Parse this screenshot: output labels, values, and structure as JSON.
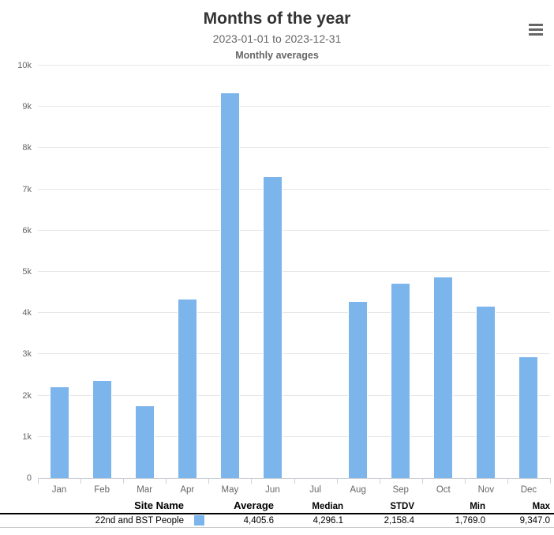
{
  "header": {
    "title": "Months of the year",
    "subtitle": "2023-01-01 to 2023-12-31",
    "subtitle2": "Monthly averages"
  },
  "colors": {
    "bar": "#7cb5ec",
    "grid": "#e6e6e6",
    "axis": "#ccd0d6",
    "axis_label": "#666666",
    "title": "#333333",
    "subtitle": "#666666"
  },
  "chart_data": {
    "type": "bar",
    "title": "Months of the year",
    "subtitle": "2023-01-01 to 2023-12-31",
    "subtitle2": "Monthly averages",
    "categories": [
      "Jan",
      "Feb",
      "Mar",
      "Apr",
      "May",
      "Jun",
      "Jul",
      "Aug",
      "Sep",
      "Oct",
      "Nov",
      "Dec"
    ],
    "series": [
      {
        "name": "22nd and BST People",
        "color": "#7cb5ec",
        "values": [
          2230,
          2370,
          1769,
          4350,
          9347,
          7320,
          null,
          4296,
          4740,
          4880,
          4170,
          2950
        ]
      }
    ],
    "ylim": [
      0,
      10000
    ],
    "ytick_interval": 1000,
    "ytick_labels": [
      "0",
      "1k",
      "2k",
      "3k",
      "4k",
      "5k",
      "6k",
      "7k",
      "8k",
      "9k",
      "10k"
    ],
    "xlabel": "",
    "ylabel": "",
    "grid": true,
    "legend_position": "none"
  },
  "table": {
    "headers": {
      "site_name": "Site Name",
      "average": "Average",
      "median": "Median",
      "stdv": "STDV",
      "min": "Min",
      "max": "Max"
    },
    "rows": [
      {
        "site_name": "22nd and BST People",
        "swatch_color": "#7cb5ec",
        "average": "4,405.6",
        "median": "4,296.1",
        "stdv": "2,158.4",
        "min": "1,769.0",
        "max": "9,347.0"
      }
    ]
  }
}
